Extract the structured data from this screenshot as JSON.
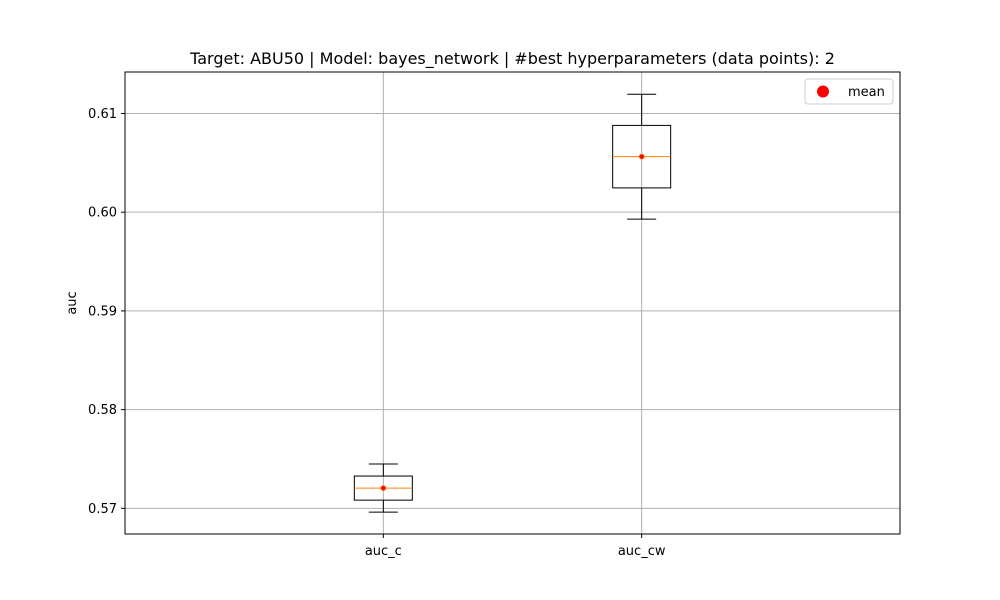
{
  "chart_data": {
    "type": "box",
    "title": "Target: ABU50 | Model: bayes_network | #best hyperparameters (data points): 2",
    "xlabel": "",
    "ylabel": "auc",
    "categories": [
      "auc_c",
      "auc_cw"
    ],
    "ylim": [
      0.5674,
      0.6142
    ],
    "yticks": [
      0.57,
      0.58,
      0.59,
      0.6,
      0.61
    ],
    "ytick_labels": [
      "0.57",
      "0.58",
      "0.59",
      "0.60",
      "0.61"
    ],
    "grid": true,
    "legend": {
      "placement": "top-right",
      "entries": [
        {
          "label": "mean",
          "marker": "circle",
          "color": "#ff0000"
        }
      ]
    },
    "boxes": [
      {
        "category": "auc_c",
        "whisker_low": 0.56962,
        "q1": 0.57083,
        "median": 0.57205,
        "q3": 0.57327,
        "whisker_high": 0.57449,
        "mean": 0.57205
      },
      {
        "category": "auc_cw",
        "whisker_low": 0.5993,
        "q1": 0.60246,
        "median": 0.60563,
        "q3": 0.60879,
        "whisker_high": 0.61195,
        "mean": 0.60563
      }
    ],
    "colors": {
      "box": "#000000",
      "median": "#ff7f0e",
      "mean": "#ff0000",
      "grid": "#b0b0b0"
    }
  }
}
